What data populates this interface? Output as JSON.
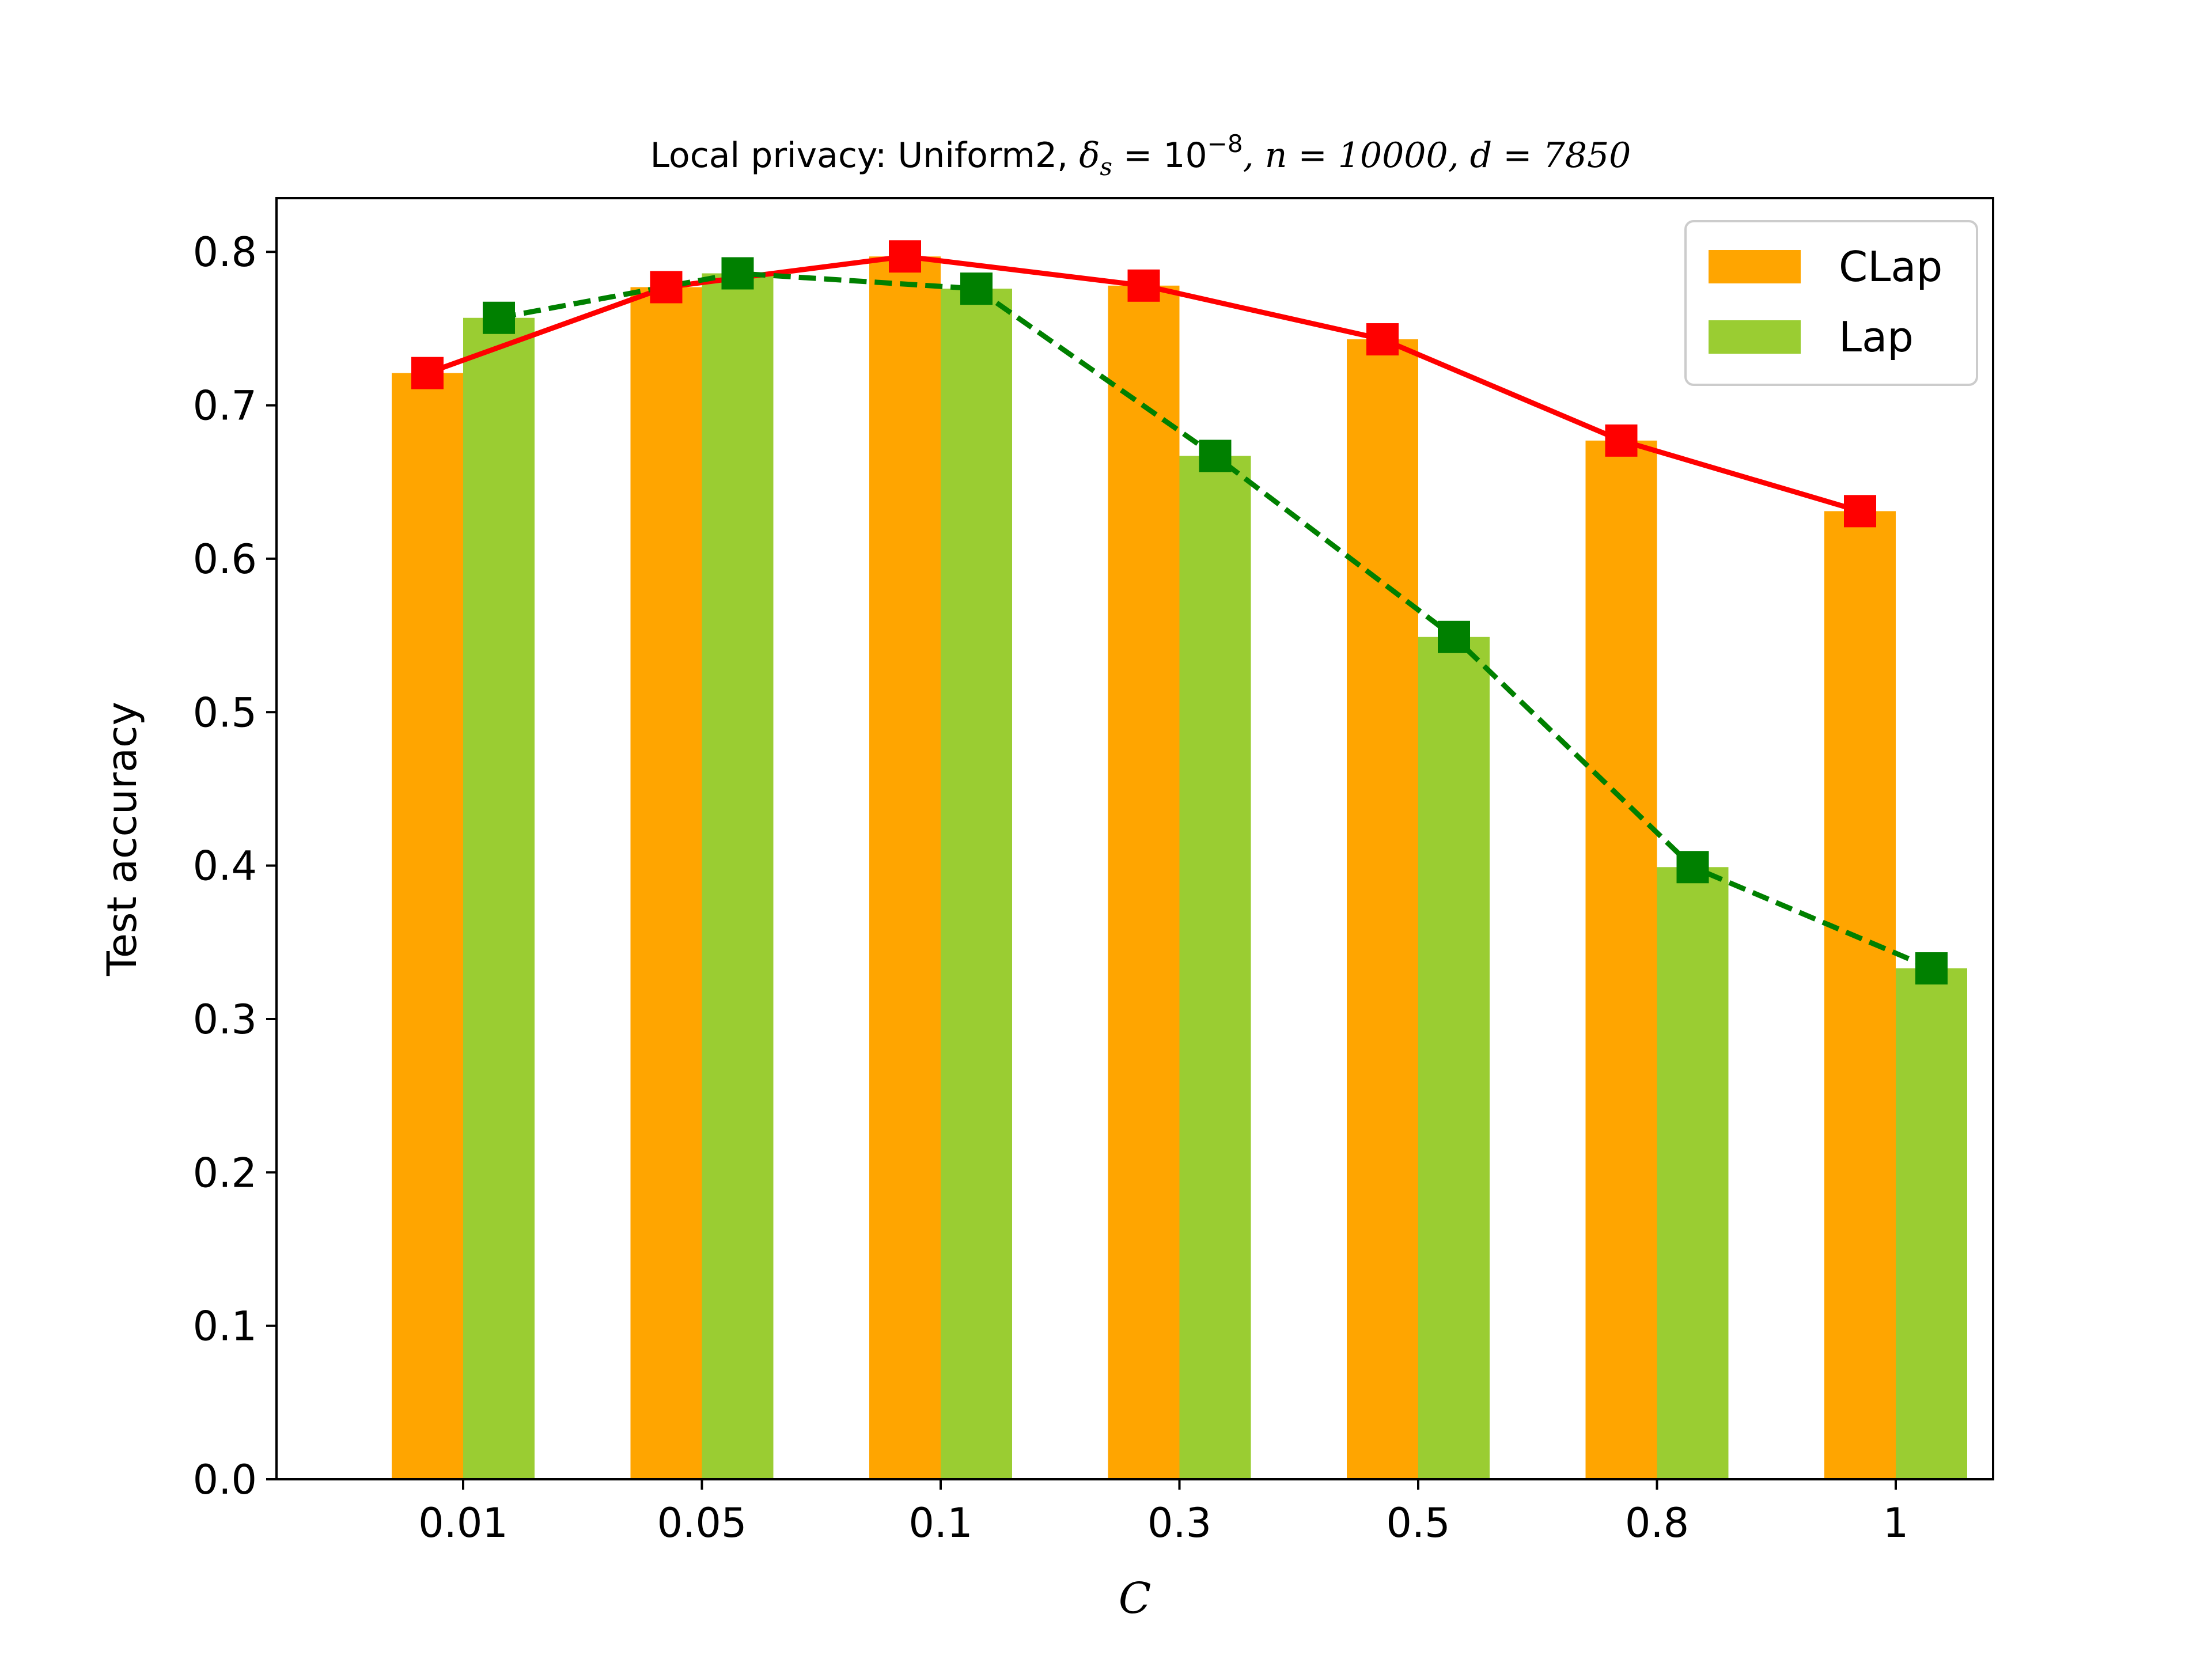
{
  "chart_data": {
    "type": "bar",
    "title": {
      "prefix": "Local privacy: Uniform2, ",
      "delta_symbol": "δ",
      "delta_sub": "s",
      "delta_eq": " = 10",
      "delta_exp": "−8",
      "n_part": ", n = 10000",
      "d_part": ", d = 7850"
    },
    "xlabel": "C",
    "ylabel": "Test accuracy",
    "categories": [
      "0.01",
      "0.05",
      "0.1",
      "0.3",
      "0.5",
      "0.8",
      "1"
    ],
    "ylim": [
      0.0,
      0.835
    ],
    "yticks": [
      0.0,
      0.1,
      0.2,
      0.3,
      0.4,
      0.5,
      0.6,
      0.7,
      0.8
    ],
    "ytick_labels": [
      "0.0",
      "0.1",
      "0.2",
      "0.3",
      "0.4",
      "0.5",
      "0.6",
      "0.7",
      "0.8"
    ],
    "grid": false,
    "legend_position": "top-right",
    "series": [
      {
        "name": "CLap",
        "values": [
          0.721,
          0.777,
          0.797,
          0.778,
          0.743,
          0.677,
          0.631
        ],
        "bar_color": "#FFA500",
        "line_color": "#FF0000",
        "line_style": "solid"
      },
      {
        "name": "Lap",
        "values": [
          0.757,
          0.786,
          0.776,
          0.667,
          0.549,
          0.399,
          0.333
        ],
        "bar_color": "#9ACD32",
        "line_color": "#008000",
        "line_style": "dashed"
      }
    ]
  }
}
